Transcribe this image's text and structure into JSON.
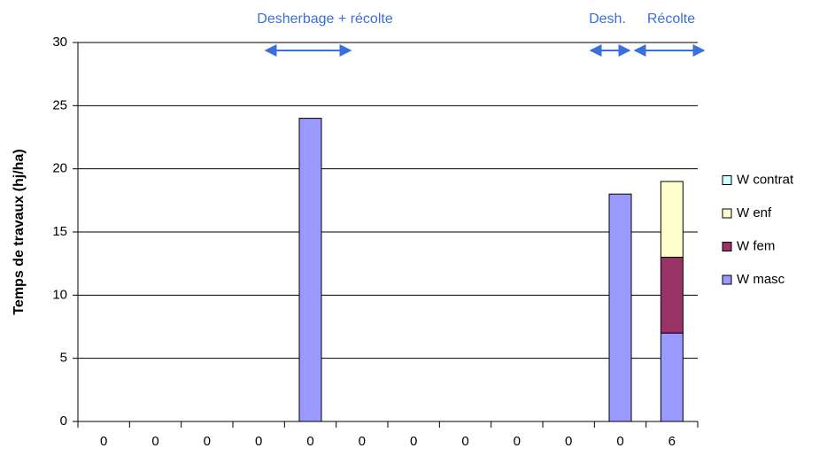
{
  "chart_data": {
    "type": "bar",
    "stacked": true,
    "y_label": "Temps de travaux (hj/ha)",
    "annotations": [
      "Desherbage + récolte",
      "Desh.",
      "Récolte"
    ],
    "categories": [
      "0",
      "0",
      "0",
      "0",
      "0",
      "0",
      "0",
      "0",
      "0",
      "0",
      "0",
      "6"
    ],
    "series": [
      {
        "name": "W masc",
        "color": "#9999ff",
        "values": [
          0,
          0,
          0,
          0,
          24,
          0,
          0,
          0,
          0,
          0,
          18,
          7
        ]
      },
      {
        "name": "W  fem",
        "color": "#993366",
        "values": [
          0,
          0,
          0,
          0,
          0,
          0,
          0,
          0,
          0,
          0,
          0,
          6
        ]
      },
      {
        "name": "W enf",
        "color": "#ffffcc",
        "values": [
          0,
          0,
          0,
          0,
          0,
          0,
          0,
          0,
          0,
          0,
          0,
          6
        ]
      },
      {
        "name": "W contrat",
        "color": "#ccffff",
        "values": [
          0,
          0,
          0,
          0,
          0,
          0,
          0,
          0,
          0,
          0,
          0,
          0
        ]
      }
    ],
    "ylim": [
      0,
      30
    ],
    "yticks": [
      0,
      5,
      10,
      15,
      20,
      25,
      30
    ],
    "grid": true,
    "legend": "right"
  }
}
